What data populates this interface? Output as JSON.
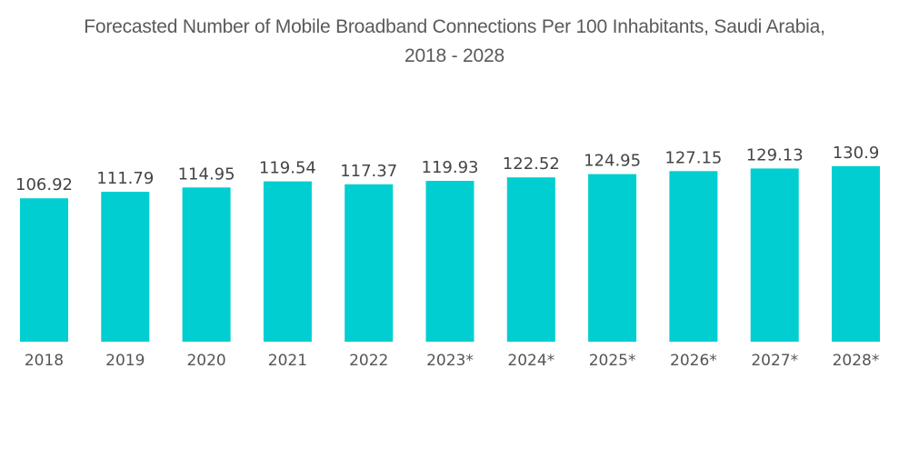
{
  "chart_data": {
    "type": "bar",
    "title": "Forecasted Number of Mobile Broadband Connections Per 100 Inhabitants, Saudi Arabia, 2018 - 2028",
    "title_line1": "Forecasted Number of Mobile Broadband Connections Per 100 Inhabitants, Saudi Arabia,",
    "title_line2": "2018 - 2028",
    "xlabel": "",
    "ylabel": "",
    "categories": [
      "2018",
      "2019",
      "2020",
      "2021",
      "2022",
      "2023*",
      "2024*",
      "2025*",
      "2026*",
      "2027*",
      "2028*"
    ],
    "values": [
      106.92,
      111.79,
      114.95,
      119.54,
      117.37,
      119.93,
      122.52,
      124.95,
      127.15,
      129.13,
      130.9
    ],
    "value_labels": [
      "106.92",
      "111.79",
      "114.95",
      "119.54",
      "117.37",
      "119.93",
      "122.52",
      "124.95",
      "127.15",
      "129.13",
      "130.9"
    ],
    "ylim": [
      0,
      140
    ],
    "grid": false,
    "legend": "none",
    "bar_color": "#00CED1"
  }
}
